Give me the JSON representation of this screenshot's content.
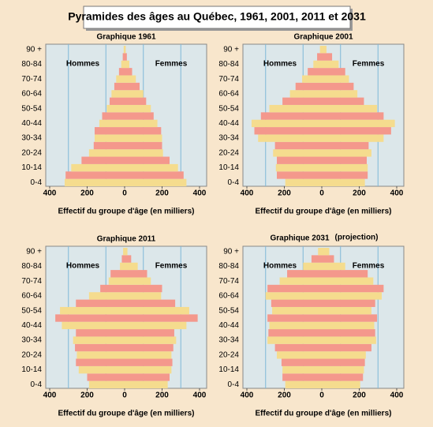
{
  "title": "Pyramides des âges au Québec, 1961, 2001, 2011 et 2031",
  "chart_data": [
    {
      "type": "pyramid",
      "title": "Graphique 1961",
      "xlabel": "Effectif du groupe d'âge (en milliers)",
      "left_label": "Hommes",
      "right_label": "Femmes",
      "categories": [
        "0-4",
        null,
        "10-14",
        null,
        "20-24",
        null,
        "30-34",
        null,
        "40-44",
        null,
        "50-54",
        null,
        "60-64",
        null,
        "70-74",
        null,
        "80-84",
        null,
        "90 +"
      ],
      "series": [
        {
          "name": "Hommes",
          "values": [
            -320,
            -315,
            -285,
            -230,
            -190,
            -165,
            -160,
            -160,
            -135,
            -120,
            -95,
            -80,
            -70,
            -55,
            -45,
            -30,
            -18,
            -10,
            -5
          ]
        },
        {
          "name": "Femmes",
          "values": [
            330,
            315,
            285,
            240,
            205,
            200,
            200,
            195,
            175,
            155,
            140,
            115,
            100,
            80,
            60,
            40,
            25,
            12,
            6
          ]
        }
      ],
      "row_colors": [
        "#f5dc8e",
        "#f4988c"
      ],
      "xlim": [
        -400,
        400
      ],
      "xticks": [
        {
          "value": -400,
          "label": "400"
        },
        {
          "value": -200,
          "label": "200"
        },
        0,
        200,
        400
      ],
      "xgrid": [
        -300,
        -100,
        100,
        300
      ]
    },
    {
      "type": "pyramid",
      "title": "Graphique 2001",
      "xlabel": "Effectif du groupe d'âge (en milliers)",
      "left_label": "Hommes",
      "right_label": "Femmes",
      "categories": [
        "0-4",
        null,
        "10-14",
        null,
        "20-24",
        null,
        "30-34",
        null,
        "40-44",
        null,
        "50-54",
        null,
        "60-64",
        null,
        "70-74",
        null,
        "80-84",
        null,
        "90 +"
      ],
      "series": [
        {
          "name": "Hommes",
          "values": [
            -195,
            -240,
            -245,
            -240,
            -260,
            -250,
            -340,
            -360,
            -375,
            -325,
            -280,
            -210,
            -170,
            -140,
            -105,
            -75,
            -45,
            -25,
            -10
          ]
        },
        {
          "name": "Femmes",
          "values": [
            230,
            245,
            245,
            240,
            265,
            250,
            330,
            370,
            390,
            330,
            295,
            225,
            190,
            170,
            145,
            125,
            90,
            55,
            25
          ]
        }
      ],
      "row_colors": [
        "#f5dc8e",
        "#f4988c"
      ],
      "xlim": [
        -400,
        400
      ],
      "xticks": [
        {
          "value": -400,
          "label": "400"
        },
        {
          "value": -200,
          "label": "200"
        },
        0,
        200,
        400
      ],
      "xgrid": [
        -300,
        -100,
        100,
        300
      ]
    },
    {
      "type": "pyramid",
      "title": "Graphique 2011",
      "xlabel": "Effectif du groupe d'âge (en milliers)",
      "left_label": "Hommes",
      "right_label": "Femmes",
      "categories": [
        "0-4",
        null,
        "10-14",
        null,
        "20-24",
        null,
        "30-34",
        null,
        "40-44",
        null,
        "50-54",
        null,
        "60-64",
        null,
        "70-74",
        null,
        "80-84",
        null,
        "90 +"
      ],
      "series": [
        {
          "name": "Hommes",
          "values": [
            -190,
            -200,
            -245,
            -260,
            -255,
            -265,
            -275,
            -260,
            -335,
            -370,
            -345,
            -260,
            -190,
            -130,
            -85,
            -75,
            -25,
            -15,
            -8
          ]
        },
        {
          "name": "Femmes",
          "values": [
            230,
            240,
            250,
            255,
            250,
            260,
            275,
            265,
            330,
            390,
            345,
            270,
            195,
            200,
            140,
            120,
            70,
            35,
            15
          ]
        }
      ],
      "row_colors": [
        "#f5dc8e",
        "#f4988c"
      ],
      "xlim": [
        -400,
        400
      ],
      "xticks": [
        {
          "value": -400,
          "label": "400"
        },
        {
          "value": -200,
          "label": "200"
        },
        0,
        200,
        400
      ],
      "xgrid": [
        -300,
        -100,
        100,
        300
      ]
    },
    {
      "type": "pyramid",
      "title": "Graphique 2031",
      "subtitle": "(projection)",
      "xlabel": "Effectif du groupe d'âge (en milliers)",
      "left_label": "Hommes",
      "right_label": "Femmes",
      "categories": [
        "0-4",
        null,
        "10-14",
        null,
        "20-24",
        null,
        "30-34",
        null,
        "40-44",
        null,
        "50-54",
        null,
        "60-64",
        null,
        "70-74",
        null,
        "80-84",
        null,
        "90 +"
      ],
      "series": [
        {
          "name": "Hommes",
          "values": [
            -195,
            -210,
            -210,
            -215,
            -240,
            -250,
            -290,
            -285,
            -280,
            -290,
            -265,
            -270,
            -300,
            -290,
            -225,
            -185,
            -100,
            -55,
            -20
          ]
        },
        {
          "name": "Femmes",
          "values": [
            205,
            220,
            225,
            230,
            235,
            265,
            290,
            285,
            280,
            295,
            265,
            285,
            320,
            330,
            275,
            245,
            125,
            65,
            40
          ]
        }
      ],
      "row_colors": [
        "#f5dc8e",
        "#f4988c"
      ],
      "xlim": [
        -400,
        400
      ],
      "xticks": [
        {
          "value": -400,
          "label": "400"
        },
        {
          "value": -200,
          "label": "200"
        },
        0,
        200,
        400
      ],
      "xgrid": [
        -300,
        -100,
        100,
        300
      ]
    }
  ]
}
